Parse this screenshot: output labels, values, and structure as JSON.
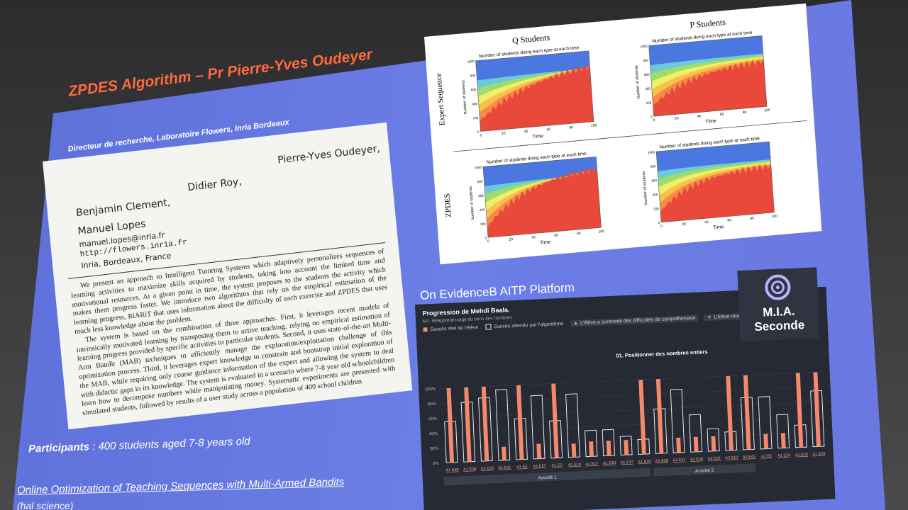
{
  "slide": {
    "title": "ZPDES Algorithm – Pr Pierre-Yves Oudeyer",
    "subtitle": "Directeur de recherche, Laboratoire Flowers, Inria Bordeaux",
    "paper": {
      "authors": [
        "Benjamin Clement,",
        "Didier Roy,",
        "Pierre-Yves Oudeyer,",
        "Manuel Lopes"
      ],
      "email": "manuel.lopes@inria.fr",
      "url": "http://flowers.inria.fr",
      "affiliation": "Inria, Bordeaux, France",
      "abstract": [
        "We present an approach to Intelligent Tutoring Systems which adaptively personalizes sequences of learning activities to maximize skills acquired by students, taking into account the limited time and motivational resources. At a given point in time, the system proposes to the students the activity which makes them progress faster. We introduce two algorithms that rely on the empirical estimation of the learning progress, RiARiT that uses information about the difficulty of each exercise and ZPDES that uses much less knowledge about the problem.",
        "The system is based on the combination of three approaches. First, it leverages recent models of intrinsically motivated learning by transposing them to active teaching, relying on empirical estimation of learning progress provided by specific activities to particular students. Second, it uses state-of-the-art Multi-Arm Bandit (MAB) techniques to efficiently manage the exploration/exploitation challenge of this optimization process. Third, it leverages expert knowledge to constrain and bootstrap initial exploration of the MAB, while requiring only coarse guidance information of the expert and allowing the system to deal with didactic gaps in its knowledge. The system is evaluated in a scenario where 7-8 year old schoolchildren learn how to decompose numbers while manipulating money. Systematic experiments are presented with simulated students, followed by results of a user study across a population of 400 school children."
      ]
    },
    "participants_label": "Participants",
    "participants_text": ": 400 students aged 7-8 years old",
    "link": "Online Optimization of Teaching Sequences with Multi-Armed Bandits",
    "link_note": "(hal science)",
    "figure": {
      "columns": [
        "Q Students",
        "P Students"
      ],
      "rows": [
        "Expert Sequence",
        "ZPDES"
      ],
      "plot_title": "Number of students doing each type at each time",
      "y_label": "Number of students",
      "x_label": "Time",
      "xticks": [
        0,
        20,
        40,
        60,
        80,
        100
      ],
      "yticks": [
        0,
        200,
        400,
        600,
        800,
        1000
      ]
    },
    "platform_heading": "On EvidenceB AITP Platform",
    "dashboard": {
      "title": "Progression de Mehdi Baala.",
      "subtitle": "M1. Réapprentissage du sens des nombres",
      "extra_legend": [
        "L'élève a surmonté des difficultés de compréhension",
        "L'élève rencontre des diffi"
      ],
      "logo": [
        "M.I.A.",
        "Seconde"
      ],
      "activities": [
        "Activité 1",
        "Activité 2"
      ],
      "chart": {
        "type": "bar",
        "title": "01. Positionner des nombres entiers",
        "categories": [
          "A1 E40",
          "A1 E36",
          "A1 E23",
          "A1 E41",
          "A1 E3",
          "A1 E27",
          "A1 E2",
          "A1 E19",
          "A1 E17",
          "A1 E18",
          "A1 E37",
          "A1 E39",
          "A2 E28",
          "A2 E37",
          "A2 E24",
          "A2 E32",
          "A2 E10",
          "A2 E43",
          "A1 E6",
          "A1 E25",
          "A1 E28",
          "A1 E26"
        ],
        "series": [
          {
            "name": "Succès réel de l'élève",
            "color": "#f4896b",
            "values": [
              100,
              100,
              100,
              18,
              100,
              20,
              100,
              18,
              20,
              20,
              20,
              100,
              100,
              20,
              20,
              20,
              100,
              100,
              20,
              20,
              100,
              100
            ]
          },
          {
            "name": "Succès attendu par l'algorithme",
            "color": "#e8e8f0",
            "values": [
              55,
              80,
              85,
              95,
              55,
              85,
              50,
              85,
              35,
              35,
              25,
              20,
              60,
              85,
              50,
              30,
              25,
              70,
              70,
              45,
              30,
              75
            ]
          }
        ],
        "ylim": [
          0,
          100
        ],
        "yticks": [
          {
            "value": 0,
            "label": "0%"
          },
          {
            "value": 20,
            "label": "20%"
          },
          {
            "value": 40,
            "label": "40%"
          },
          {
            "value": 60,
            "label": "60%"
          },
          {
            "value": 80,
            "label": "80%"
          },
          {
            "value": 100,
            "label": "100%"
          }
        ]
      }
    }
  }
}
